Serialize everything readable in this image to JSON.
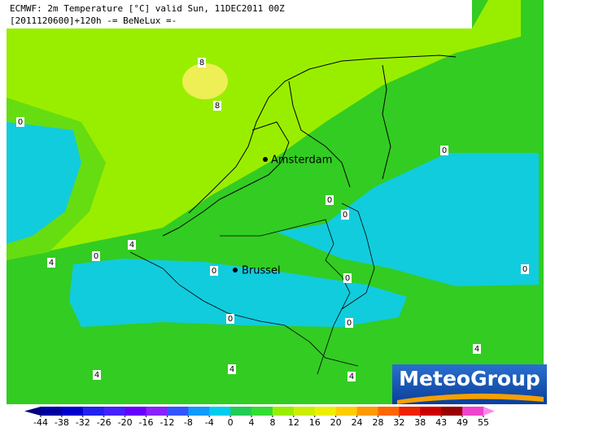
{
  "header": {
    "line1": "ECMWF: 2m Temperature [°C] valid Sun, 11DEC2011 00Z",
    "line2": "[2011120600]+120h -= BeNeLux =-"
  },
  "cities": [
    "Amsterdam",
    "Brussel"
  ],
  "contour_labels": [
    "8",
    "8",
    "0",
    "0",
    "0",
    "0",
    "4",
    "0",
    "4",
    "0",
    "0",
    "0",
    "0",
    "0",
    "4",
    "4",
    "4",
    "4"
  ],
  "logo": "MeteoGroup",
  "colorbar": {
    "ticks": [
      -44,
      -38,
      -32,
      -26,
      -20,
      -16,
      -12,
      -8,
      -4,
      0,
      4,
      8,
      12,
      16,
      20,
      24,
      28,
      32,
      38,
      43,
      49,
      55
    ],
    "colors": [
      "#000080",
      "#0000a0",
      "#0000cc",
      "#2222ee",
      "#4422ff",
      "#6600ff",
      "#8822ff",
      "#3355ff",
      "#1199ff",
      "#00ccee",
      "#22cc55",
      "#33dd33",
      "#99ee00",
      "#ccee00",
      "#eeee00",
      "#ffcc00",
      "#ff9900",
      "#ff6600",
      "#ee2200",
      "#cc0000",
      "#990000",
      "#ee44cc",
      "#ff88ee"
    ]
  }
}
